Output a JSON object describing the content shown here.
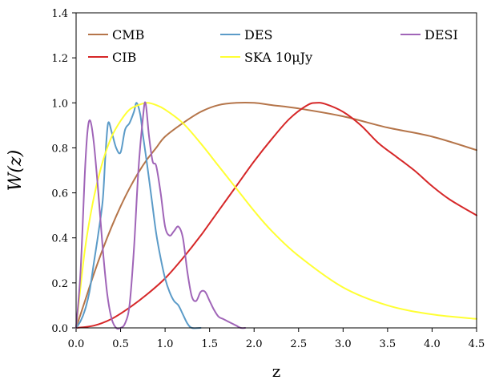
{
  "chart_data": {
    "type": "line",
    "xlabel": "z",
    "ylabel": "W(z)",
    "xlim": [
      0.0,
      4.5
    ],
    "ylim": [
      0.0,
      1.4
    ],
    "xticks": [
      "0.0",
      "0.5",
      "1.0",
      "1.5",
      "2.0",
      "2.5",
      "3.0",
      "3.5",
      "4.0",
      "4.5"
    ],
    "yticks": [
      "0.0",
      "0.2",
      "0.4",
      "0.6",
      "0.8",
      "1.0",
      "1.2",
      "1.4"
    ],
    "grid": false,
    "legend_position": "top",
    "series": [
      {
        "name": "CMB",
        "color": "#b5754a",
        "x": [
          0.0,
          0.1,
          0.2,
          0.3,
          0.4,
          0.5,
          0.6,
          0.7,
          0.8,
          0.9,
          1.0,
          1.2,
          1.4,
          1.6,
          1.8,
          2.0,
          2.2,
          2.5,
          3.0,
          3.5,
          4.0,
          4.5
        ],
        "y": [
          0.0,
          0.12,
          0.24,
          0.35,
          0.45,
          0.54,
          0.62,
          0.69,
          0.75,
          0.8,
          0.85,
          0.91,
          0.96,
          0.99,
          1.0,
          1.0,
          0.99,
          0.975,
          0.94,
          0.89,
          0.85,
          0.79
        ]
      },
      {
        "name": "CIB",
        "color": "#d62728",
        "x": [
          0.0,
          0.2,
          0.4,
          0.6,
          0.8,
          1.0,
          1.2,
          1.4,
          1.6,
          1.8,
          2.0,
          2.2,
          2.4,
          2.6,
          2.7,
          2.8,
          3.0,
          3.2,
          3.4,
          3.6,
          3.8,
          4.0,
          4.2,
          4.5
        ],
        "y": [
          0.0,
          0.01,
          0.04,
          0.09,
          0.15,
          0.22,
          0.31,
          0.41,
          0.52,
          0.63,
          0.74,
          0.84,
          0.93,
          0.99,
          1.0,
          0.995,
          0.96,
          0.9,
          0.82,
          0.76,
          0.7,
          0.63,
          0.57,
          0.5
        ]
      },
      {
        "name": "DES",
        "color": "#5b9bc8",
        "x": [
          0.0,
          0.05,
          0.1,
          0.15,
          0.2,
          0.25,
          0.3,
          0.33,
          0.36,
          0.4,
          0.45,
          0.5,
          0.55,
          0.6,
          0.65,
          0.68,
          0.72,
          0.75,
          0.8,
          0.85,
          0.9,
          0.95,
          1.0,
          1.05,
          1.1,
          1.15,
          1.2,
          1.25,
          1.3,
          1.4
        ],
        "y": [
          0.0,
          0.03,
          0.08,
          0.16,
          0.29,
          0.42,
          0.57,
          0.77,
          0.91,
          0.87,
          0.8,
          0.78,
          0.88,
          0.91,
          0.96,
          1.0,
          0.95,
          0.86,
          0.72,
          0.57,
          0.42,
          0.31,
          0.22,
          0.16,
          0.12,
          0.1,
          0.06,
          0.02,
          0.0,
          0.0
        ]
      },
      {
        "name": "SKA 10μJy",
        "color": "#ffff33",
        "x": [
          0.0,
          0.1,
          0.2,
          0.3,
          0.4,
          0.5,
          0.6,
          0.7,
          0.8,
          0.9,
          1.0,
          1.2,
          1.4,
          1.6,
          1.8,
          2.0,
          2.2,
          2.5,
          3.0,
          3.5,
          4.0,
          4.5
        ],
        "y": [
          0.0,
          0.35,
          0.58,
          0.74,
          0.85,
          0.92,
          0.97,
          0.99,
          1.0,
          0.99,
          0.97,
          0.91,
          0.82,
          0.72,
          0.62,
          0.52,
          0.43,
          0.32,
          0.18,
          0.1,
          0.06,
          0.04
        ]
      },
      {
        "name": "DESI",
        "color": "#a065b8",
        "x": [
          0.0,
          0.05,
          0.1,
          0.13,
          0.16,
          0.2,
          0.25,
          0.3,
          0.35,
          0.4,
          0.45,
          0.5,
          0.55,
          0.6,
          0.65,
          0.7,
          0.75,
          0.78,
          0.82,
          0.86,
          0.9,
          0.95,
          1.0,
          1.05,
          1.1,
          1.15,
          1.2,
          1.25,
          1.3,
          1.35,
          1.4,
          1.45,
          1.5,
          1.55,
          1.6,
          1.65,
          1.7,
          1.75,
          1.8,
          1.85,
          1.9
        ],
        "y": [
          0.0,
          0.25,
          0.7,
          0.88,
          0.92,
          0.82,
          0.6,
          0.35,
          0.15,
          0.04,
          0.0,
          0.0,
          0.02,
          0.1,
          0.35,
          0.7,
          0.93,
          1.0,
          0.85,
          0.74,
          0.72,
          0.6,
          0.45,
          0.41,
          0.43,
          0.45,
          0.4,
          0.25,
          0.14,
          0.12,
          0.16,
          0.16,
          0.12,
          0.08,
          0.05,
          0.04,
          0.03,
          0.02,
          0.01,
          0.0,
          0.0
        ]
      }
    ]
  }
}
